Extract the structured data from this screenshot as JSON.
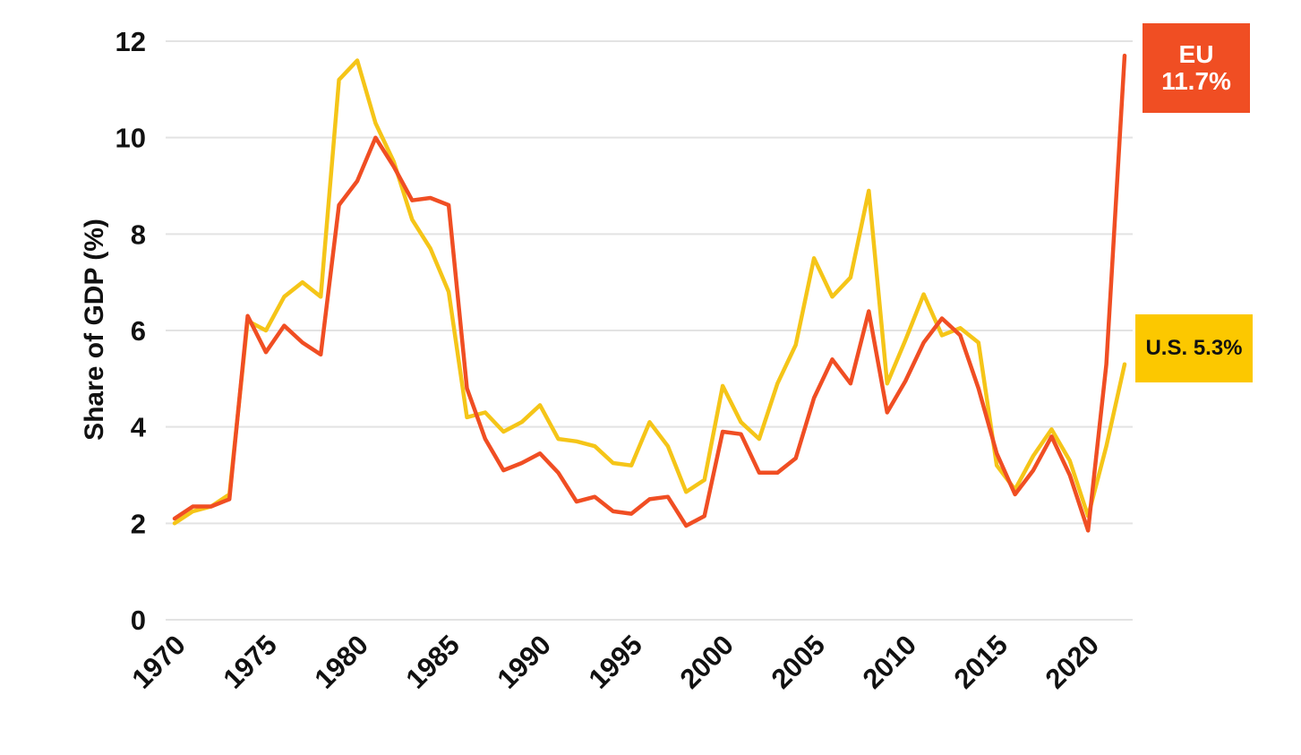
{
  "chart_data": {
    "type": "line",
    "title": "",
    "xlabel": "",
    "ylabel": "Share of GDP (%)",
    "xlim": [
      1970,
      2022
    ],
    "ylim": [
      0,
      12
    ],
    "x_ticks": [
      "1970",
      "1975",
      "1980",
      "1985",
      "1990",
      "1995",
      "2000",
      "2005",
      "2010",
      "2015",
      "2020"
    ],
    "y_ticks": [
      "0",
      "2",
      "4",
      "6",
      "8",
      "10",
      "12"
    ],
    "grid": true,
    "legend": "direct labels at right end",
    "x": [
      1970,
      1971,
      1972,
      1973,
      1974,
      1975,
      1976,
      1977,
      1978,
      1979,
      1980,
      1981,
      1982,
      1983,
      1984,
      1985,
      1986,
      1987,
      1988,
      1989,
      1990,
      1991,
      1992,
      1993,
      1994,
      1995,
      1996,
      1997,
      1998,
      1999,
      2000,
      2001,
      2002,
      2003,
      2004,
      2005,
      2006,
      2007,
      2008,
      2009,
      2010,
      2011,
      2012,
      2013,
      2014,
      2015,
      2016,
      2017,
      2018,
      2019,
      2020,
      2021,
      2022
    ],
    "series": [
      {
        "color": "#f5c518",
        "values": [
          2.0,
          2.25,
          2.35,
          2.6,
          6.2,
          6.0,
          6.7,
          7.0,
          6.7,
          11.2,
          11.6,
          10.3,
          9.5,
          8.3,
          7.7,
          6.8,
          4.2,
          4.3,
          3.9,
          4.1,
          4.45,
          3.75,
          3.7,
          3.6,
          3.25,
          3.2,
          4.1,
          3.6,
          2.65,
          2.9,
          4.85,
          4.1,
          3.75,
          4.9,
          5.7,
          7.5,
          6.7,
          7.1,
          8.9,
          4.9,
          5.8,
          6.75,
          5.9,
          6.05,
          5.75,
          3.2,
          2.7,
          3.4,
          3.95,
          3.3,
          2.15,
          3.6,
          5.3
        ]
      },
      {
        "color": "#f04e23",
        "values": [
          2.1,
          2.35,
          2.35,
          2.5,
          6.3,
          5.55,
          6.1,
          5.75,
          5.5,
          8.6,
          9.1,
          10.0,
          9.4,
          8.7,
          8.75,
          8.6,
          4.8,
          3.75,
          3.1,
          3.25,
          3.45,
          3.05,
          2.45,
          2.55,
          2.25,
          2.2,
          2.5,
          2.55,
          1.95,
          2.15,
          3.9,
          3.85,
          3.05,
          3.05,
          3.35,
          4.6,
          5.4,
          4.9,
          6.4,
          4.3,
          4.95,
          5.75,
          6.25,
          5.9,
          4.8,
          3.45,
          2.6,
          3.1,
          3.8,
          3.0,
          1.85,
          5.3,
          11.7
        ]
      }
    ],
    "labels": {
      "eu": {
        "line1": "EU",
        "line2": "11.7%",
        "bg": "#f04e23"
      },
      "us": {
        "text": "U.S. 5.3%",
        "bg": "#fcc800"
      }
    }
  }
}
